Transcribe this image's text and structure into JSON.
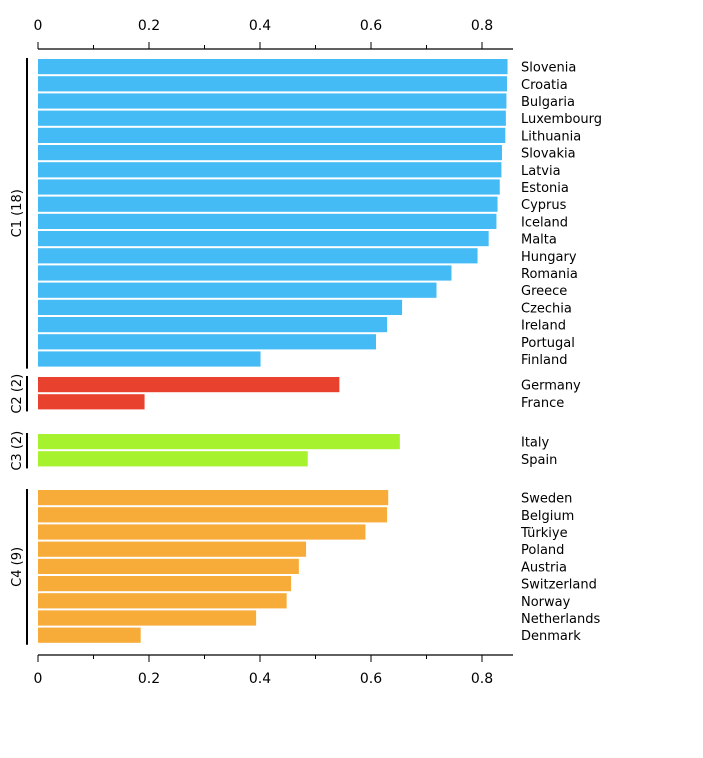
{
  "chart_data": {
    "type": "bar",
    "orientation": "horizontal",
    "title": "",
    "xlabel": "",
    "ylabel": "",
    "xlim": [
      0,
      0.86
    ],
    "ticks": [
      0,
      0.2,
      0.4,
      0.6,
      0.8
    ],
    "tick_labels": [
      "0",
      "0.2",
      "0.4",
      "0.6",
      "0.8"
    ],
    "grid": false,
    "axes": [
      "top",
      "bottom"
    ],
    "clusters": [
      {
        "name": "C1 (18)",
        "color": "#45BBF5",
        "items": [
          {
            "label": "Slovenia",
            "value": 0.846
          },
          {
            "label": "Croatia",
            "value": 0.845
          },
          {
            "label": "Bulgaria",
            "value": 0.844
          },
          {
            "label": "Luxembourg",
            "value": 0.843
          },
          {
            "label": "Lithuania",
            "value": 0.842
          },
          {
            "label": "Slovakia",
            "value": 0.836
          },
          {
            "label": "Latvia",
            "value": 0.835
          },
          {
            "label": "Estonia",
            "value": 0.832
          },
          {
            "label": "Cyprus",
            "value": 0.828
          },
          {
            "label": "Iceland",
            "value": 0.826
          },
          {
            "label": "Malta",
            "value": 0.812
          },
          {
            "label": "Hungary",
            "value": 0.792
          },
          {
            "label": "Romania",
            "value": 0.745
          },
          {
            "label": "Greece",
            "value": 0.718
          },
          {
            "label": "Czechia",
            "value": 0.656
          },
          {
            "label": "Ireland",
            "value": 0.629
          },
          {
            "label": "Portugal",
            "value": 0.609
          },
          {
            "label": "Finland",
            "value": 0.401
          }
        ]
      },
      {
        "name": "C2 (2)",
        "color": "#E8412E",
        "items": [
          {
            "label": "Germany",
            "value": 0.543
          },
          {
            "label": "France",
            "value": 0.192
          }
        ]
      },
      {
        "name": "C3 (2)",
        "color": "#A6F22E",
        "items": [
          {
            "label": "Italy",
            "value": 0.652
          },
          {
            "label": "Spain",
            "value": 0.486
          }
        ]
      },
      {
        "name": "C4 (9)",
        "color": "#F7AB38",
        "items": [
          {
            "label": "Sweden",
            "value": 0.631
          },
          {
            "label": "Belgium",
            "value": 0.629
          },
          {
            "label": "Türkiye",
            "value": 0.59
          },
          {
            "label": "Poland",
            "value": 0.483
          },
          {
            "label": "Austria",
            "value": 0.47
          },
          {
            "label": "Switzerland",
            "value": 0.456
          },
          {
            "label": "Norway",
            "value": 0.448
          },
          {
            "label": "Netherlands",
            "value": 0.393
          },
          {
            "label": "Denmark",
            "value": 0.185
          }
        ]
      }
    ]
  }
}
